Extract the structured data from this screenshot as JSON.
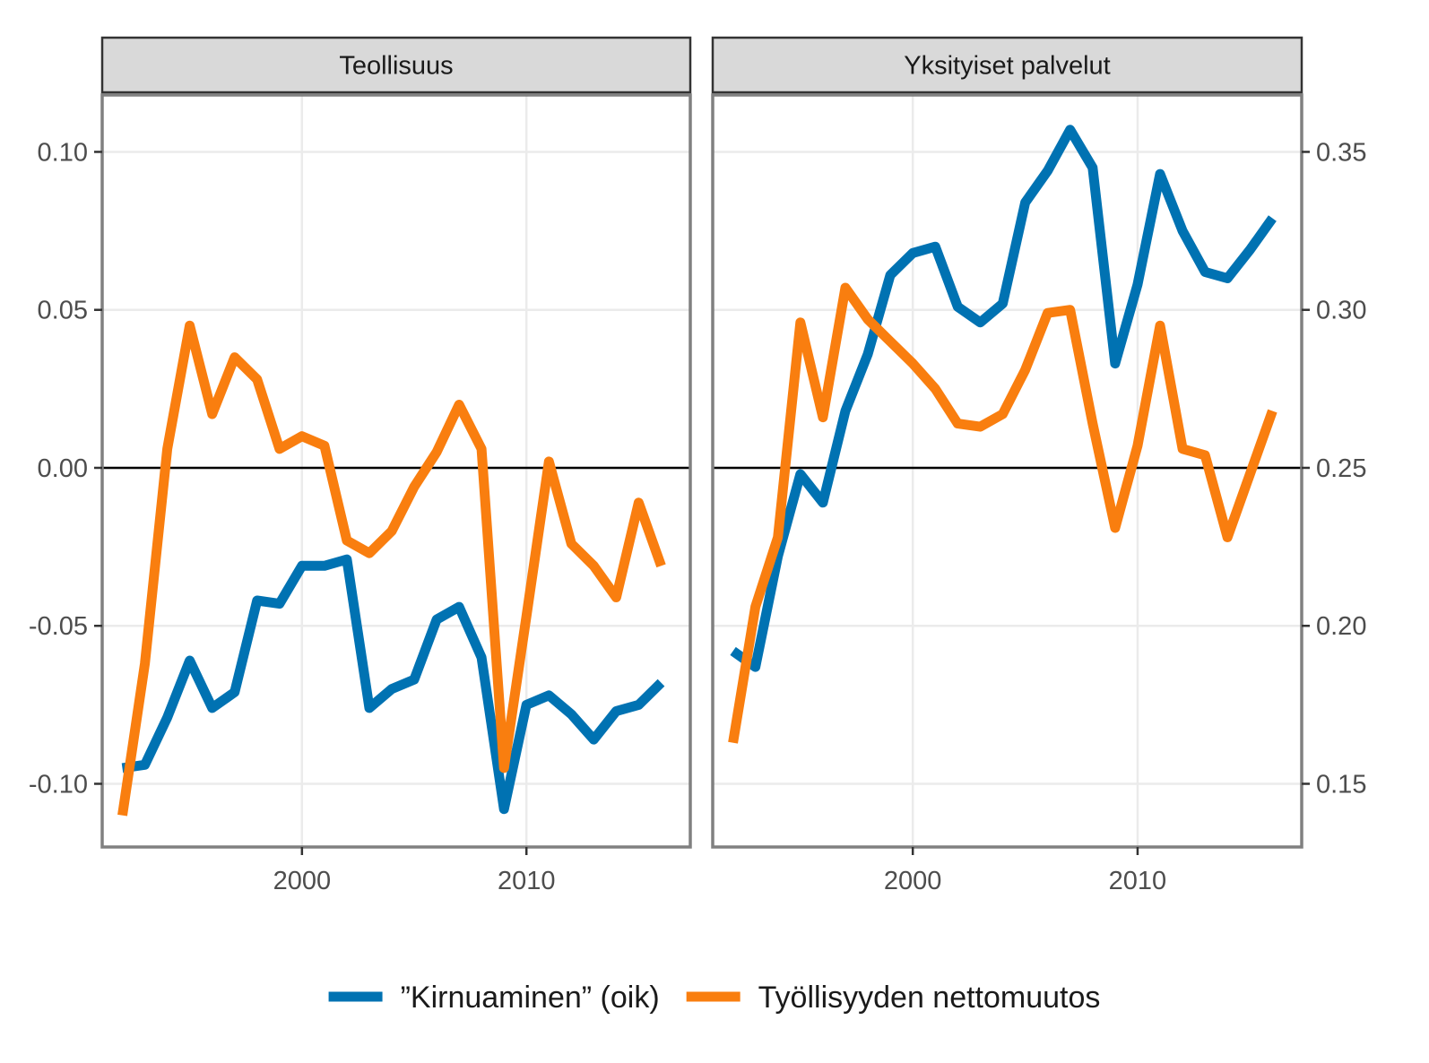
{
  "chart_data": {
    "type": "line",
    "x_ticks": [
      2000,
      2010
    ],
    "xlim": [
      1991.1,
      2017.3
    ],
    "left_axis": {
      "ylim": [
        -0.12,
        0.118
      ],
      "ticks": [
        -0.1,
        -0.05,
        0.0,
        0.05,
        0.1
      ],
      "tick_labels": [
        "-0.10",
        "-0.05",
        "0.00",
        "0.05",
        "0.10"
      ]
    },
    "right_axis": {
      "ylim": [
        0.13,
        0.368
      ],
      "ticks": [
        0.15,
        0.2,
        0.25,
        0.3,
        0.35
      ],
      "tick_labels": [
        "0.15",
        "0.20",
        "0.25",
        "0.30",
        "0.35"
      ]
    },
    "reference_line": 0.0,
    "grid": true,
    "colors": {
      "churn": "#0072b2",
      "net": "#f97e0f",
      "zero_line": "#000000"
    },
    "panels": [
      {
        "title": "Teollisuus",
        "x": [
          1992,
          1993,
          1994,
          1995,
          1996,
          1997,
          1998,
          1999,
          2000,
          2001,
          2002,
          2003,
          2004,
          2005,
          2006,
          2007,
          2008,
          2009,
          2010,
          2011,
          2012,
          2013,
          2014,
          2015,
          2016
        ],
        "series": [
          {
            "key": "churn",
            "values": [
              -0.095,
              -0.094,
              -0.079,
              -0.061,
              -0.076,
              -0.071,
              -0.042,
              -0.043,
              -0.031,
              -0.031,
              -0.029,
              -0.076,
              -0.07,
              -0.067,
              -0.048,
              -0.044,
              -0.06,
              -0.108,
              -0.075,
              -0.072,
              -0.078,
              -0.086,
              -0.077,
              -0.075,
              -0.068
            ]
          },
          {
            "key": "net",
            "values": [
              -0.11,
              -0.062,
              0.006,
              0.045,
              0.017,
              0.035,
              0.028,
              0.006,
              0.01,
              0.007,
              -0.023,
              -0.027,
              -0.02,
              -0.006,
              0.005,
              0.02,
              0.006,
              -0.095,
              -0.047,
              0.002,
              -0.024,
              -0.031,
              -0.041,
              -0.011,
              -0.031
            ]
          }
        ]
      },
      {
        "title": "Yksityiset palvelut",
        "x": [
          1992,
          1993,
          1994,
          1995,
          1996,
          1997,
          1998,
          1999,
          2000,
          2001,
          2002,
          2003,
          2004,
          2005,
          2006,
          2007,
          2008,
          2009,
          2010,
          2011,
          2012,
          2013,
          2014,
          2015,
          2016
        ],
        "series": [
          {
            "key": "churn",
            "values": [
              -0.058,
              -0.063,
              -0.028,
              -0.002,
              -0.011,
              0.018,
              0.036,
              0.061,
              0.068,
              0.07,
              0.051,
              0.046,
              0.052,
              0.084,
              0.094,
              0.107,
              0.095,
              0.033,
              0.058,
              0.093,
              0.075,
              0.062,
              0.06,
              0.069,
              0.079
            ]
          },
          {
            "key": "net",
            "values": [
              -0.087,
              -0.044,
              -0.022,
              0.046,
              0.016,
              0.057,
              0.047,
              0.04,
              0.033,
              0.025,
              0.014,
              0.013,
              0.017,
              0.031,
              0.049,
              0.05,
              0.014,
              -0.019,
              0.007,
              0.045,
              0.006,
              0.004,
              -0.022,
              -0.002,
              0.018
            ]
          }
        ]
      }
    ],
    "legend": {
      "position": "bottom",
      "items": [
        {
          "key": "churn",
          "label": "”Kirnuaminen” (oik)"
        },
        {
          "key": "net",
          "label": "Työllisyyden nettomuutos"
        }
      ]
    }
  }
}
